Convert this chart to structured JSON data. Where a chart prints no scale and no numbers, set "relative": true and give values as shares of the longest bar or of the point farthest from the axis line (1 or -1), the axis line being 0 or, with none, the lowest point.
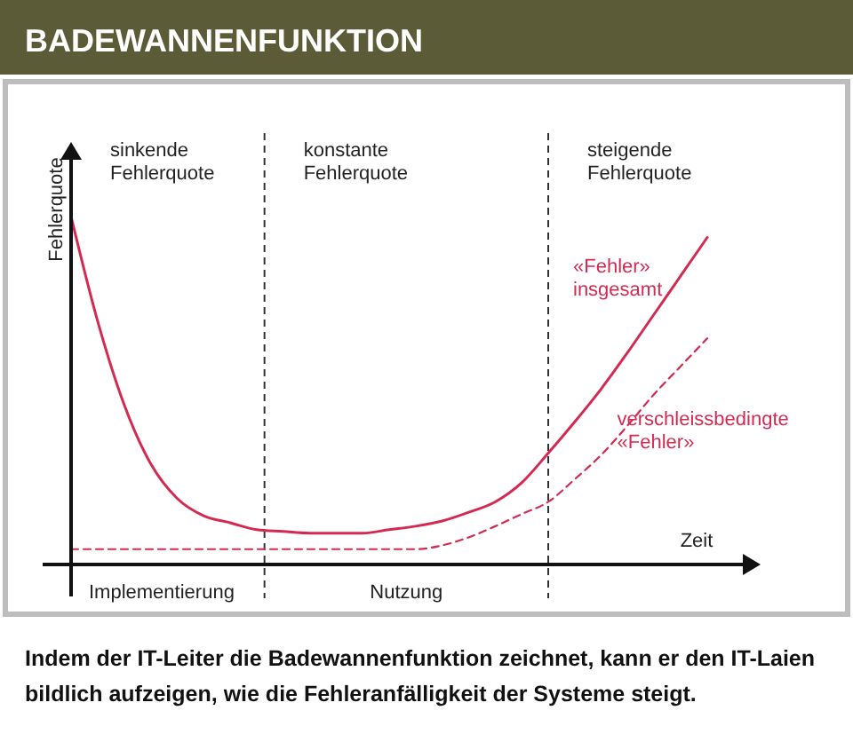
{
  "chart_data": {
    "type": "line",
    "title": "BADEWANNENFUNKTION",
    "xlabel": "Zeit",
    "ylabel": "Fehlerquote",
    "relative": true,
    "categories": [
      null,
      null,
      null,
      null,
      null,
      null,
      null,
      null,
      null,
      null,
      null,
      null,
      null,
      null,
      null,
      null,
      null,
      null,
      null,
      null,
      null,
      null,
      null,
      null,
      null
    ],
    "series": [
      {
        "name": "«Fehler» insgesamt",
        "color": "#d42a52",
        "values": [
          1.0,
          0.7,
          0.46,
          0.29,
          0.19,
          0.14,
          0.12,
          0.1,
          0.095,
          0.09,
          0.09,
          0.09,
          0.1,
          0.11,
          0.125,
          0.15,
          0.18,
          0.235,
          0.32,
          0.41,
          0.505,
          0.61,
          0.72,
          0.83,
          0.94
        ]
      },
      {
        "name": "verschleissbedingte «Fehler»",
        "color": "#d42a52",
        "line_style": "dashed",
        "values": [
          0.044,
          0.044,
          0.044,
          0.044,
          0.044,
          0.044,
          0.044,
          0.044,
          0.044,
          0.044,
          0.044,
          0.044,
          0.044,
          0.044,
          0.055,
          0.078,
          0.11,
          0.145,
          0.18,
          0.245,
          0.315,
          0.4,
          0.49,
          0.57,
          0.65
        ]
      }
    ],
    "annotations": [
      "sinkende Fehlerquote",
      "konstante Fehlerquote",
      "steigende Fehlerquote",
      "Implementierung",
      "Nutzung",
      "Indem der IT-Leiter die Badewannenfunktion zeichnet, kann er den IT-Laien bildlich aufzeigen, wie die Fehleranfälligkeit der Systeme steigt."
    ],
    "line_style": "solid",
    "marker": "none"
  }
}
